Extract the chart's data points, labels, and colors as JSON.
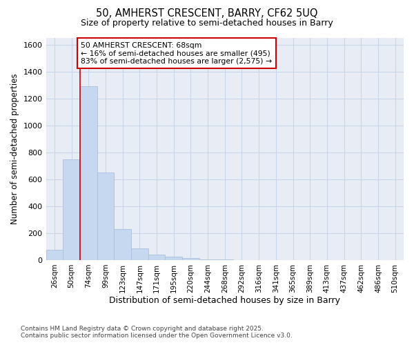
{
  "title_line1": "50, AMHERST CRESCENT, BARRY, CF62 5UQ",
  "title_line2": "Size of property relative to semi-detached houses in Barry",
  "xlabel": "Distribution of semi-detached houses by size in Barry",
  "ylabel": "Number of semi-detached properties",
  "categories": [
    "26sqm",
    "50sqm",
    "74sqm",
    "99sqm",
    "123sqm",
    "147sqm",
    "171sqm",
    "195sqm",
    "220sqm",
    "244sqm",
    "268sqm",
    "292sqm",
    "316sqm",
    "341sqm",
    "365sqm",
    "389sqm",
    "413sqm",
    "437sqm",
    "462sqm",
    "486sqm",
    "510sqm"
  ],
  "values": [
    75,
    750,
    1290,
    650,
    230,
    85,
    40,
    25,
    15,
    5,
    3,
    0,
    0,
    0,
    0,
    0,
    0,
    0,
    0,
    0,
    0
  ],
  "bar_color": "#c5d8ef",
  "bar_edge_color": "#a8c0de",
  "property_line_x": 1.5,
  "annotation_text_line1": "50 AMHERST CRESCENT: 68sqm",
  "annotation_text_line2": "← 16% of semi-detached houses are smaller (495)",
  "annotation_text_line3": "83% of semi-detached houses are larger (2,575) →",
  "annotation_box_facecolor": "#ffffff",
  "annotation_box_edgecolor": "#cc0000",
  "line_color": "#cc0000",
  "ylim": [
    0,
    1650
  ],
  "yticks": [
    0,
    200,
    400,
    600,
    800,
    1000,
    1200,
    1400,
    1600
  ],
  "grid_color": "#c8d4e8",
  "plot_bg_color": "#e8edf5",
  "fig_bg_color": "#ffffff",
  "footer_line1": "Contains HM Land Registry data © Crown copyright and database right 2025.",
  "footer_line2": "Contains public sector information licensed under the Open Government Licence v3.0."
}
